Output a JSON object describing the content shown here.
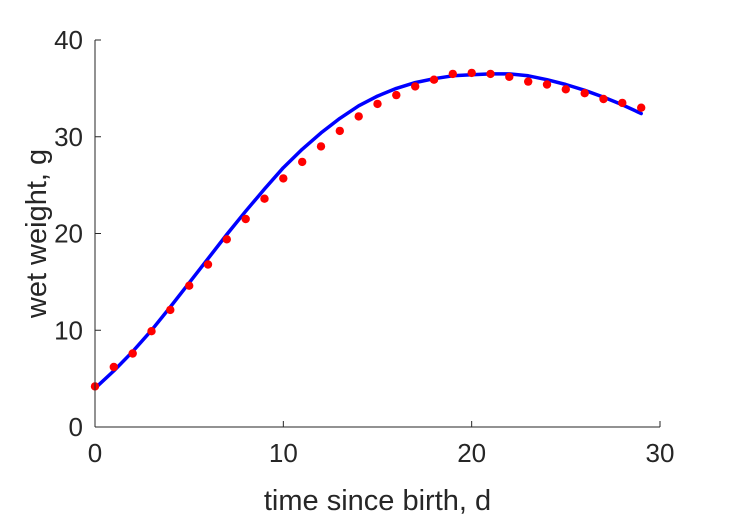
{
  "chart_data": {
    "type": "scatter",
    "title": "",
    "xlabel": "time since birth, d",
    "ylabel": "wet weight, g",
    "xlim": [
      0,
      30
    ],
    "ylim": [
      0,
      40
    ],
    "xticks": [
      "0",
      "10",
      "20",
      "30"
    ],
    "yticks": [
      "0",
      "10",
      "20",
      "30",
      "40"
    ],
    "grid": false,
    "legend": "none",
    "series": [
      {
        "kind": "scatter",
        "color": "#ff0000",
        "x": [
          0,
          1,
          2,
          3,
          4,
          5,
          6,
          7,
          8,
          9,
          10,
          11,
          12,
          13,
          14,
          15,
          16,
          17,
          18,
          19,
          20,
          21,
          22,
          23,
          24,
          25,
          26,
          27,
          28,
          29
        ],
        "y": [
          4.2,
          6.2,
          7.6,
          9.9,
          12.1,
          14.6,
          16.8,
          19.4,
          21.5,
          23.6,
          25.7,
          27.4,
          29.0,
          30.6,
          32.1,
          33.4,
          34.3,
          35.2,
          35.9,
          36.5,
          36.6,
          36.5,
          36.2,
          35.7,
          35.4,
          34.9,
          34.5,
          33.9,
          33.5,
          33.0
        ]
      },
      {
        "kind": "line",
        "color": "#0000ff",
        "x": [
          0,
          1,
          2,
          3,
          4,
          5,
          6,
          7,
          8,
          9,
          10,
          11,
          12,
          13,
          14,
          15,
          16,
          17,
          18,
          19,
          20,
          21,
          22,
          23,
          24,
          25,
          26,
          27,
          28,
          29
        ],
        "y": [
          4.0,
          5.8,
          7.8,
          10.0,
          12.4,
          14.9,
          17.4,
          19.9,
          22.3,
          24.6,
          26.8,
          28.7,
          30.4,
          31.9,
          33.2,
          34.2,
          35.0,
          35.6,
          36.0,
          36.3,
          36.4,
          36.5,
          36.5,
          36.3,
          35.9,
          35.4,
          34.8,
          34.1,
          33.3,
          32.4
        ]
      }
    ]
  }
}
